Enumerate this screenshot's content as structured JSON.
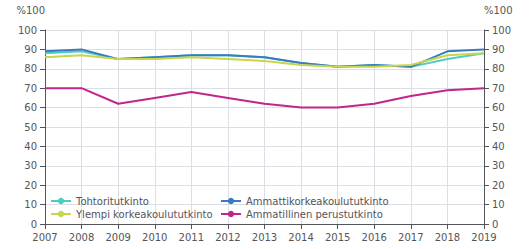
{
  "chart_data": {
    "type": "line",
    "x": [
      2007,
      2008,
      2009,
      2010,
      2011,
      2012,
      2013,
      2014,
      2015,
      2016,
      2017,
      2018,
      2019
    ],
    "series": [
      {
        "name": "Tohtoritutkinto",
        "color": "#4ecdc4",
        "values": [
          88,
          89,
          85,
          86,
          87,
          87,
          86,
          83,
          81,
          82,
          81,
          85,
          88
        ]
      },
      {
        "name": "Ammattikorkeakoulututkinto",
        "color": "#3a7abf",
        "values": [
          89,
          90,
          85,
          86,
          87,
          87,
          86,
          83,
          81,
          82,
          81,
          89,
          90
        ]
      },
      {
        "name": "Ylempi korkeakoulututkinto",
        "color": "#c8d44e",
        "values": [
          86,
          87,
          85,
          85,
          86,
          85,
          84,
          82,
          81,
          81,
          82,
          87,
          88
        ]
      },
      {
        "name": "Ammatillinen perustutkinto",
        "color": "#c0268c",
        "values": [
          70,
          70,
          62,
          65,
          68,
          65,
          62,
          60,
          60,
          62,
          66,
          69,
          70
        ]
      }
    ],
    "xlim": [
      2007,
      2019
    ],
    "xticks": [
      2007,
      2008,
      2009,
      2010,
      2011,
      2012,
      2013,
      2014,
      2015,
      2016,
      2017,
      2018,
      2019
    ],
    "ylim": [
      0,
      100
    ],
    "yticks": [
      0,
      10,
      20,
      30,
      40,
      50,
      60,
      70,
      80,
      90,
      100
    ],
    "y2lim": [
      0,
      100
    ],
    "y2ticks": [
      0,
      10,
      20,
      30,
      40,
      50,
      60,
      70,
      80,
      90,
      100
    ],
    "ylabel": "%100",
    "y2label": "%100",
    "grid": true,
    "legend": "lower left"
  }
}
